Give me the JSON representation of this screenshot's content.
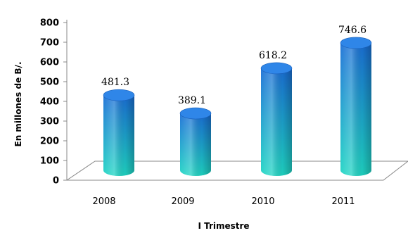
{
  "chart_data": {
    "type": "bar",
    "title": "",
    "xlabel": "I Trimestre",
    "ylabel": "En millones de B/.",
    "categories": [
      "2008",
      "2009",
      "2010",
      "2011"
    ],
    "values": [
      481.3,
      389.1,
      618.2,
      746.6
    ],
    "value_labels": [
      "481.3",
      "389.1",
      "618.2",
      "746.6"
    ],
    "yticks": [
      "0",
      "100",
      "200",
      "300",
      "400",
      "500",
      "600",
      "700",
      "800"
    ],
    "ylim": [
      0,
      800
    ],
    "grid": false,
    "legend": "none",
    "colors": {
      "bar_top": "#1a6fd6",
      "bar_bottom": "#1fd6c4",
      "bar_cap": "#2f86e8"
    }
  }
}
